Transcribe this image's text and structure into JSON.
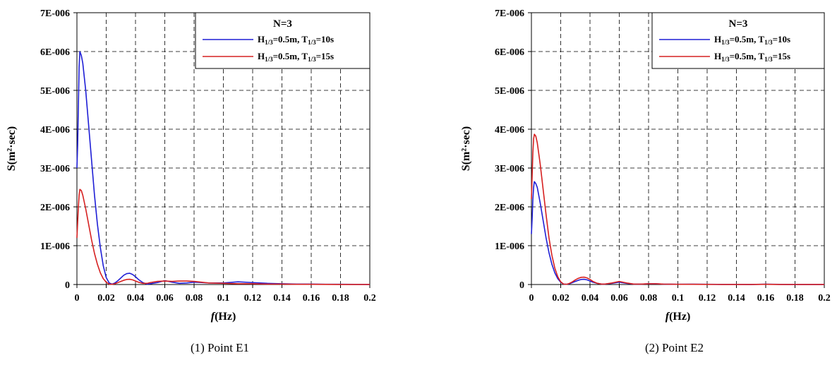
{
  "chart_data": [
    {
      "type": "line",
      "caption": "(1) Point E1",
      "xlabel": "f(Hz)",
      "ylabel": "S(m²·sec)",
      "xlim": [
        0,
        0.2
      ],
      "ylim": [
        0,
        7e-06
      ],
      "xticks": [
        "0",
        "0.02",
        "0.04",
        "0.06",
        "0.08",
        "0.1",
        "0.12",
        "0.14",
        "0.16",
        "0.18",
        "0.2"
      ],
      "yticks": [
        "0",
        "1E-006",
        "2E-006",
        "3E-006",
        "4E-006",
        "5E-006",
        "6E-006",
        "7E-006"
      ],
      "grid": true,
      "legend": {
        "title": "N=3",
        "placement": "top-right"
      },
      "series": [
        {
          "name": "H1/3=0.5m, T1/3=10s",
          "label_parts": {
            "h": "H",
            "hsub": "1/3",
            "hval": "=0.5m, ",
            "t": "T",
            "tsub": "1/3",
            "tval": "=10s"
          },
          "color": "#1f1fd6",
          "x": [
            0,
            0.0005,
            0.001,
            0.0015,
            0.002,
            0.003,
            0.004,
            0.006,
            0.008,
            0.01,
            0.012,
            0.014,
            0.016,
            0.018,
            0.02,
            0.022,
            0.024,
            0.026,
            0.028,
            0.03,
            0.032,
            0.034,
            0.036,
            0.038,
            0.04,
            0.042,
            0.045,
            0.048,
            0.05,
            0.055,
            0.06,
            0.065,
            0.07,
            0.075,
            0.08,
            0.085,
            0.09,
            0.1,
            0.11,
            0.12,
            0.13,
            0.14,
            0.15,
            0.16,
            0.17,
            0.18,
            0.19,
            0.2
          ],
          "y": [
            3e-06,
            3.6e-06,
            4.6e-06,
            5.6e-06,
            6e-06,
            5.9e-06,
            5.7e-06,
            5e-06,
            4.1e-06,
            3.2e-06,
            2.3e-06,
            1.55e-06,
            9.5e-07,
            4.8e-07,
            1.8e-07,
            4e-08,
            1e-08,
            4e-08,
            1e-07,
            1.7e-07,
            2.4e-07,
            2.8e-07,
            2.9e-07,
            2.6e-07,
            2e-07,
            1.3e-07,
            5e-08,
            1e-08,
            2e-08,
            5e-08,
            1e-07,
            6e-08,
            3e-08,
            4e-08,
            6e-08,
            5e-08,
            4e-08,
            4e-08,
            7e-08,
            5e-08,
            3e-08,
            2e-08,
            1e-08,
            1e-08,
            5e-09,
            5e-09,
            3e-09,
            2e-09
          ]
        },
        {
          "name": "H1/3=0.5m, T1/3=15s",
          "label_parts": {
            "h": "H",
            "hsub": "1/3",
            "hval": "=0.5m, ",
            "t": "T",
            "tsub": "1/3",
            "tval": "=15s"
          },
          "color": "#d62020",
          "x": [
            0,
            0.0005,
            0.001,
            0.0015,
            0.002,
            0.003,
            0.004,
            0.006,
            0.008,
            0.01,
            0.012,
            0.014,
            0.016,
            0.018,
            0.02,
            0.022,
            0.024,
            0.026,
            0.028,
            0.03,
            0.032,
            0.034,
            0.036,
            0.038,
            0.04,
            0.042,
            0.045,
            0.048,
            0.05,
            0.055,
            0.06,
            0.065,
            0.07,
            0.075,
            0.08,
            0.085,
            0.09,
            0.1,
            0.11,
            0.12,
            0.13,
            0.14,
            0.15,
            0.16,
            0.17,
            0.18,
            0.19,
            0.2
          ],
          "y": [
            1.2e-06,
            1.6e-06,
            2e-06,
            2.3e-06,
            2.45e-06,
            2.42e-06,
            2.3e-06,
            1.95e-06,
            1.55e-06,
            1.15e-06,
            8e-07,
            5.2e-07,
            3e-07,
            1.5e-07,
            6e-08,
            1e-08,
            5e-09,
            2e-08,
            5e-08,
            8e-08,
            1.1e-07,
            1.3e-07,
            1.35e-07,
            1.2e-07,
            9e-08,
            6e-08,
            3e-08,
            3e-08,
            5e-08,
            8e-08,
            9e-08,
            8e-08,
            9e-08,
            9e-08,
            8e-08,
            6e-08,
            4e-08,
            3e-08,
            2e-08,
            2e-08,
            1e-08,
            1e-08,
            5e-09,
            5e-09,
            3e-09,
            2e-09,
            1e-09,
            1e-09
          ]
        }
      ]
    },
    {
      "type": "line",
      "caption": "(2) Point E2",
      "xlabel": "f(Hz)",
      "ylabel": "S(m²·sec)",
      "xlim": [
        0,
        0.2
      ],
      "ylim": [
        0,
        7e-06
      ],
      "xticks": [
        "0",
        "0.02",
        "0.04",
        "0.06",
        "0.08",
        "0.1",
        "0.12",
        "0.14",
        "0.16",
        "0.18",
        "0.2"
      ],
      "yticks": [
        "0",
        "1E-006",
        "2E-006",
        "3E-006",
        "4E-006",
        "5E-006",
        "6E-006",
        "7E-006"
      ],
      "grid": true,
      "legend": {
        "title": "N=3",
        "placement": "top-right"
      },
      "series": [
        {
          "name": "H1/3=0.5m, T1/3=10s",
          "label_parts": {
            "h": "H",
            "hsub": "1/3",
            "hval": "=0.5m, ",
            "t": "T",
            "tsub": "1/3",
            "tval": "=10s"
          },
          "color": "#1f1fd6",
          "x": [
            0,
            0.0005,
            0.001,
            0.0015,
            0.002,
            0.003,
            0.004,
            0.006,
            0.008,
            0.01,
            0.012,
            0.014,
            0.016,
            0.018,
            0.02,
            0.022,
            0.024,
            0.026,
            0.028,
            0.03,
            0.032,
            0.034,
            0.036,
            0.038,
            0.04,
            0.042,
            0.045,
            0.048,
            0.05,
            0.055,
            0.06,
            0.065,
            0.07,
            0.075,
            0.08,
            0.085,
            0.09,
            0.1,
            0.11,
            0.12,
            0.13,
            0.14,
            0.15,
            0.16,
            0.17,
            0.18,
            0.19,
            0.2
          ],
          "y": [
            1.3e-06,
            1.7e-06,
            2.2e-06,
            2.5e-06,
            2.65e-06,
            2.6e-06,
            2.5e-06,
            2.1e-06,
            1.65e-06,
            1.2e-06,
            8.2e-07,
            5.2e-07,
            3e-07,
            1.5e-07,
            6e-08,
            1e-08,
            5e-09,
            2e-08,
            5e-08,
            8e-08,
            1.1e-07,
            1.3e-07,
            1.35e-07,
            1.2e-07,
            9e-08,
            6e-08,
            3e-08,
            1e-08,
            1e-08,
            3e-08,
            6e-08,
            3e-08,
            1e-08,
            1e-08,
            2e-08,
            2e-08,
            1e-08,
            5e-09,
            8e-09,
            5e-09,
            3e-09,
            3e-09,
            2e-09,
            8e-09,
            3e-09,
            2e-09,
            1e-09,
            1e-09
          ]
        },
        {
          "name": "H1/3=0.5m, T1/3=15s",
          "label_parts": {
            "h": "H",
            "hsub": "1/3",
            "hval": "=0.5m, ",
            "t": "T",
            "tsub": "1/3",
            "tval": "=15s"
          },
          "color": "#d62020",
          "x": [
            0,
            0.0005,
            0.001,
            0.0015,
            0.002,
            0.003,
            0.004,
            0.006,
            0.008,
            0.01,
            0.012,
            0.014,
            0.016,
            0.018,
            0.02,
            0.022,
            0.024,
            0.026,
            0.028,
            0.03,
            0.032,
            0.034,
            0.036,
            0.038,
            0.04,
            0.042,
            0.045,
            0.048,
            0.05,
            0.055,
            0.06,
            0.065,
            0.07,
            0.075,
            0.08,
            0.085,
            0.09,
            0.1,
            0.11,
            0.12,
            0.13,
            0.14,
            0.15,
            0.16,
            0.17,
            0.18,
            0.19,
            0.2
          ],
          "y": [
            2.2e-06,
            2.8e-06,
            3.4e-06,
            3.75e-06,
            3.87e-06,
            3.82e-06,
            3.65e-06,
            3.1e-06,
            2.45e-06,
            1.8e-06,
            1.2e-06,
            7.5e-07,
            4.2e-07,
            2e-07,
            7e-08,
            1e-08,
            5e-09,
            3e-08,
            7e-08,
            1.2e-07,
            1.6e-07,
            1.85e-07,
            1.9e-07,
            1.7e-07,
            1.3e-07,
            8e-08,
            3e-08,
            1e-08,
            1e-08,
            4e-08,
            8e-08,
            4e-08,
            1e-08,
            1e-08,
            2e-08,
            2e-08,
            1e-08,
            5e-09,
            5e-09,
            3e-09,
            2e-09,
            2e-09,
            1e-09,
            5e-09,
            2e-09,
            1e-09,
            1e-09,
            1e-09
          ]
        }
      ]
    }
  ]
}
